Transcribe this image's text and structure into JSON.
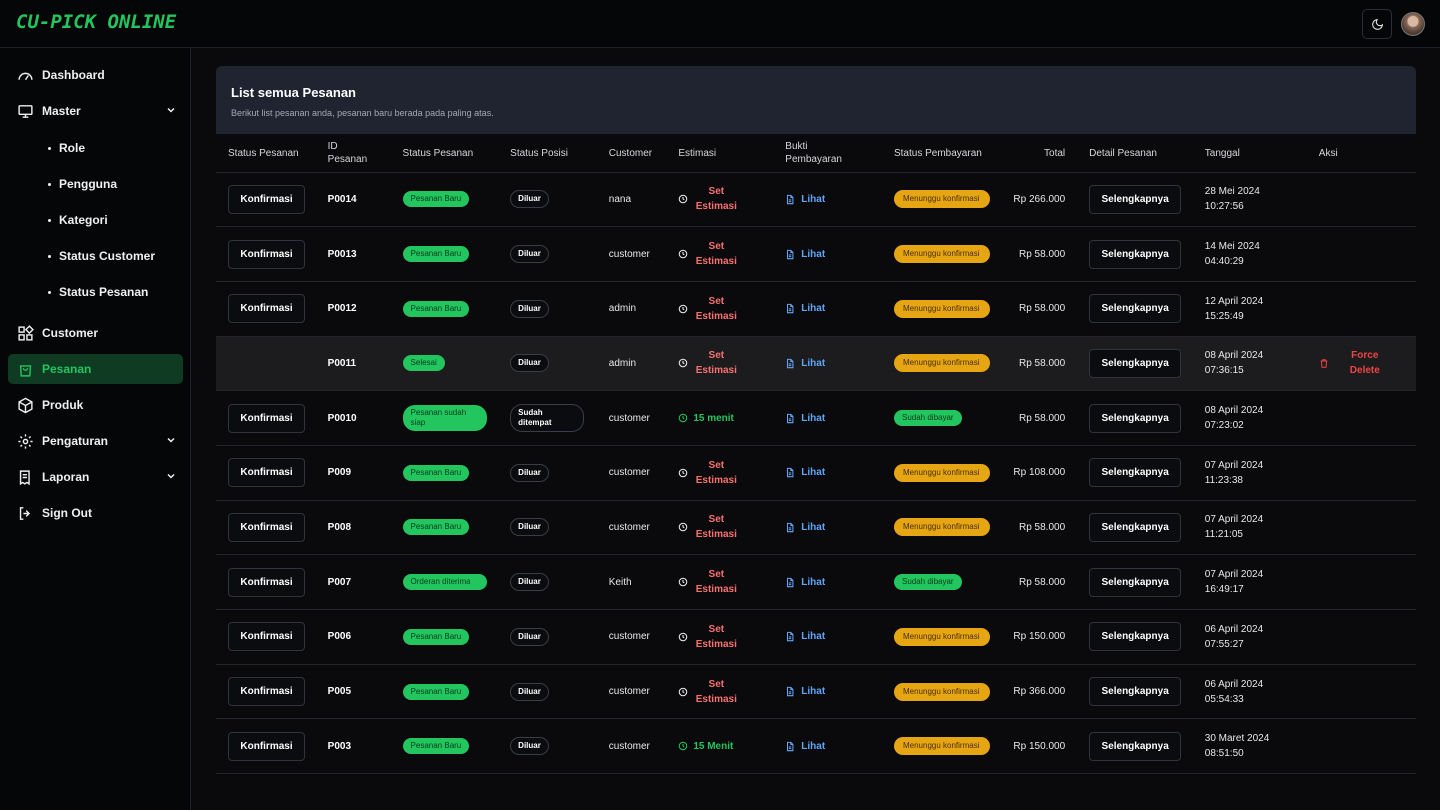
{
  "app": {
    "logo": "CU-PICK ONLINE"
  },
  "sidebar": {
    "items": [
      {
        "label": "Dashboard"
      },
      {
        "label": "Master"
      },
      {
        "label": "Customer"
      },
      {
        "label": "Pesanan"
      },
      {
        "label": "Produk"
      },
      {
        "label": "Pengaturan"
      },
      {
        "label": "Laporan"
      },
      {
        "label": "Sign Out"
      }
    ],
    "sub": [
      {
        "label": "Role"
      },
      {
        "label": "Pengguna"
      },
      {
        "label": "Kategori"
      },
      {
        "label": "Status Customer"
      },
      {
        "label": "Status Pesanan"
      }
    ]
  },
  "panel": {
    "title": "List semua Pesanan",
    "subtitle": "Berikut list pesanan anda, pesanan baru berada pada paling atas."
  },
  "columns": [
    "Status Pesanan",
    "ID Pesanan",
    "Status Pesanan",
    "Status Posisi",
    "Customer",
    "Estimasi",
    "Bukti Pembayaran",
    "Status Pembayaran",
    "Total",
    "Detail Pesanan",
    "Tanggal",
    "Aksi"
  ],
  "labels": {
    "konfirmasi": "Konfirmasi",
    "lihat": "Lihat",
    "detail": "Selengkapnya",
    "force_delete": "Force Delete"
  },
  "rows": [
    {
      "id": "P0014",
      "status": "Pesanan Baru",
      "posisi": "Diluar",
      "customer": "nana",
      "estimasi": "Set Estimasi",
      "est_set": false,
      "bayar": "Menunggu konfirmasi",
      "paid": false,
      "total": "Rp 266.000",
      "tanggal": "28 Mei 2024",
      "jam": "10:27:56",
      "konfirmasi": true
    },
    {
      "id": "P0013",
      "status": "Pesanan Baru",
      "posisi": "Diluar",
      "customer": "customer",
      "estimasi": "Set Estimasi",
      "est_set": false,
      "bayar": "Menunggu konfirmasi",
      "paid": false,
      "total": "Rp 58.000",
      "tanggal": "14 Mei 2024",
      "jam": "04:40:29",
      "konfirmasi": true
    },
    {
      "id": "P0012",
      "status": "Pesanan Baru",
      "posisi": "Diluar",
      "customer": "admin",
      "estimasi": "Set Estimasi",
      "est_set": false,
      "bayar": "Menunggu konfirmasi",
      "paid": false,
      "total": "Rp 58.000",
      "tanggal": "12 April 2024",
      "jam": "15:25:49",
      "konfirmasi": true
    },
    {
      "id": "P0011",
      "status": "Selesai",
      "posisi": "Diluar",
      "customer": "admin",
      "estimasi": "Set Estimasi",
      "est_set": false,
      "bayar": "Menunggu konfirmasi",
      "paid": false,
      "total": "Rp 58.000",
      "tanggal": "08 April 2024",
      "jam": "07:36:15",
      "konfirmasi": false,
      "force": true
    },
    {
      "id": "P0010",
      "status": "Pesanan sudah siap",
      "posisi": "Sudah ditempat",
      "customer": "customer",
      "estimasi": "15 menit",
      "est_set": true,
      "bayar": "Sudah dibayar",
      "paid": true,
      "total": "Rp 58.000",
      "tanggal": "08 April 2024",
      "jam": "07:23:02",
      "konfirmasi": true
    },
    {
      "id": "P009",
      "status": "Pesanan Baru",
      "posisi": "Diluar",
      "customer": "customer",
      "estimasi": "Set Estimasi",
      "est_set": false,
      "bayar": "Menunggu konfirmasi",
      "paid": false,
      "total": "Rp 108.000",
      "tanggal": "07 April 2024",
      "jam": "11:23:38",
      "konfirmasi": true
    },
    {
      "id": "P008",
      "status": "Pesanan Baru",
      "posisi": "Diluar",
      "customer": "customer",
      "estimasi": "Set Estimasi",
      "est_set": false,
      "bayar": "Menunggu konfirmasi",
      "paid": false,
      "total": "Rp 58.000",
      "tanggal": "07 April 2024",
      "jam": "11:21:05",
      "konfirmasi": true
    },
    {
      "id": "P007",
      "status": "Orderan diterima",
      "posisi": "Diluar",
      "customer": "Keith",
      "estimasi": "Set Estimasi",
      "est_set": false,
      "bayar": "Sudah dibayar",
      "paid": true,
      "total": "Rp 58.000",
      "tanggal": "07 April 2024",
      "jam": "16:49:17",
      "konfirmasi": true
    },
    {
      "id": "P006",
      "status": "Pesanan Baru",
      "posisi": "Diluar",
      "customer": "customer",
      "estimasi": "Set Estimasi",
      "est_set": false,
      "bayar": "Menunggu konfirmasi",
      "paid": false,
      "total": "Rp 150.000",
      "tanggal": "06 April 2024",
      "jam": "07:55:27",
      "konfirmasi": true
    },
    {
      "id": "P005",
      "status": "Pesanan Baru",
      "posisi": "Diluar",
      "customer": "customer",
      "estimasi": "Set Estimasi",
      "est_set": false,
      "bayar": "Menunggu konfirmasi",
      "paid": false,
      "total": "Rp 366.000",
      "tanggal": "06 April 2024",
      "jam": "05:54:33",
      "konfirmasi": true
    },
    {
      "id": "P003",
      "status": "Pesanan Baru",
      "posisi": "Diluar",
      "customer": "customer",
      "estimasi": "15 Menit",
      "est_set": true,
      "bayar": "Menunggu konfirmasi",
      "paid": false,
      "total": "Rp 150.000",
      "tanggal": "30 Maret 2024",
      "jam": "08:51:50",
      "konfirmasi": true
    }
  ]
}
